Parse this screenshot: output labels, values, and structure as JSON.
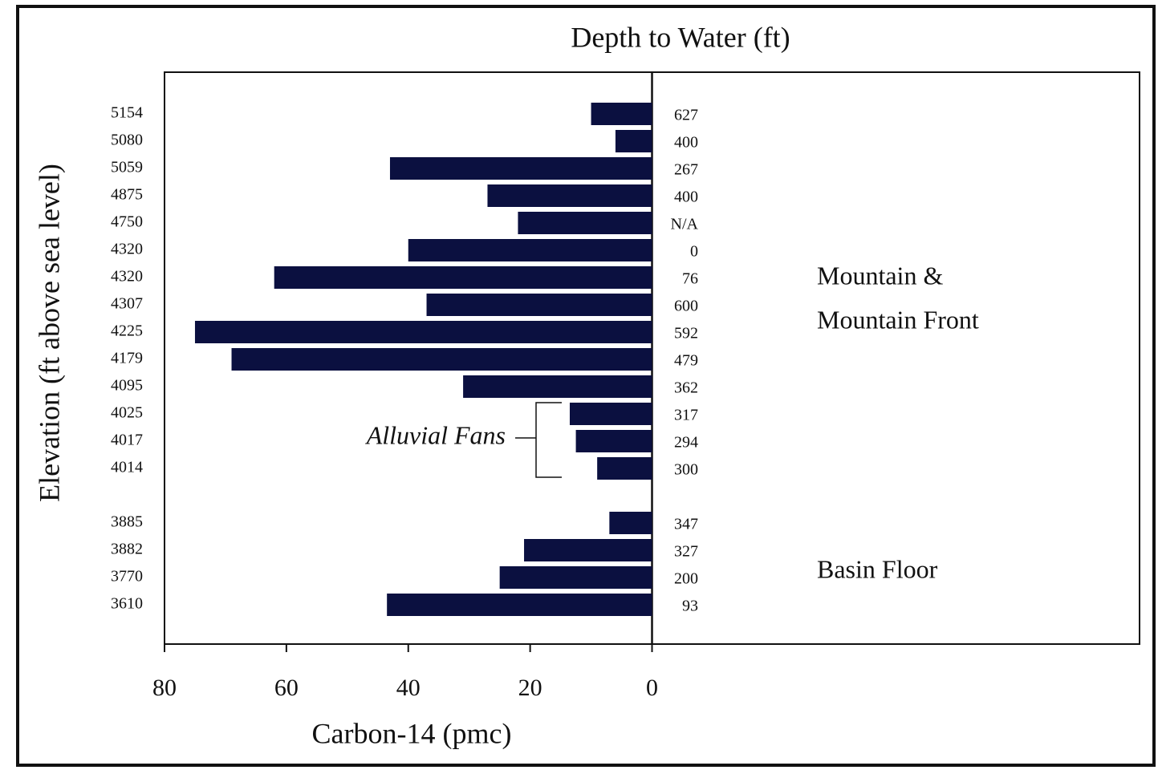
{
  "chart_data": {
    "type": "bar",
    "orientation": "horizontal",
    "title": "Depth to Water (ft)",
    "x_label": "Carbon-14 (pmc)",
    "y_label": "Elevation (ft above sea level)",
    "categories": [
      "5154",
      "5080",
      "5059",
      "4875",
      "4750",
      "4320",
      "4320",
      "4307",
      "4225",
      "4179",
      "4095",
      "4025",
      "4017",
      "4014",
      null,
      "3885",
      "3882",
      "3770",
      "3610"
    ],
    "values": [
      10,
      6,
      43,
      27,
      22,
      40,
      62,
      37,
      75,
      69,
      31,
      13.5,
      12.5,
      9,
      null,
      7,
      21,
      25,
      43.5
    ],
    "depth_to_water": [
      627,
      400,
      267,
      400,
      "N/A",
      0,
      76,
      600,
      592,
      479,
      362,
      317,
      294,
      300,
      null,
      347,
      327,
      200,
      93
    ],
    "color": "#0b1040",
    "xlim": [
      80,
      -80
    ],
    "xticks": [
      80,
      60,
      40,
      20,
      0
    ],
    "annotations": [
      "Mountain &",
      "Mountain Front",
      "Basin Floor",
      "Alluvial Fans"
    ]
  }
}
